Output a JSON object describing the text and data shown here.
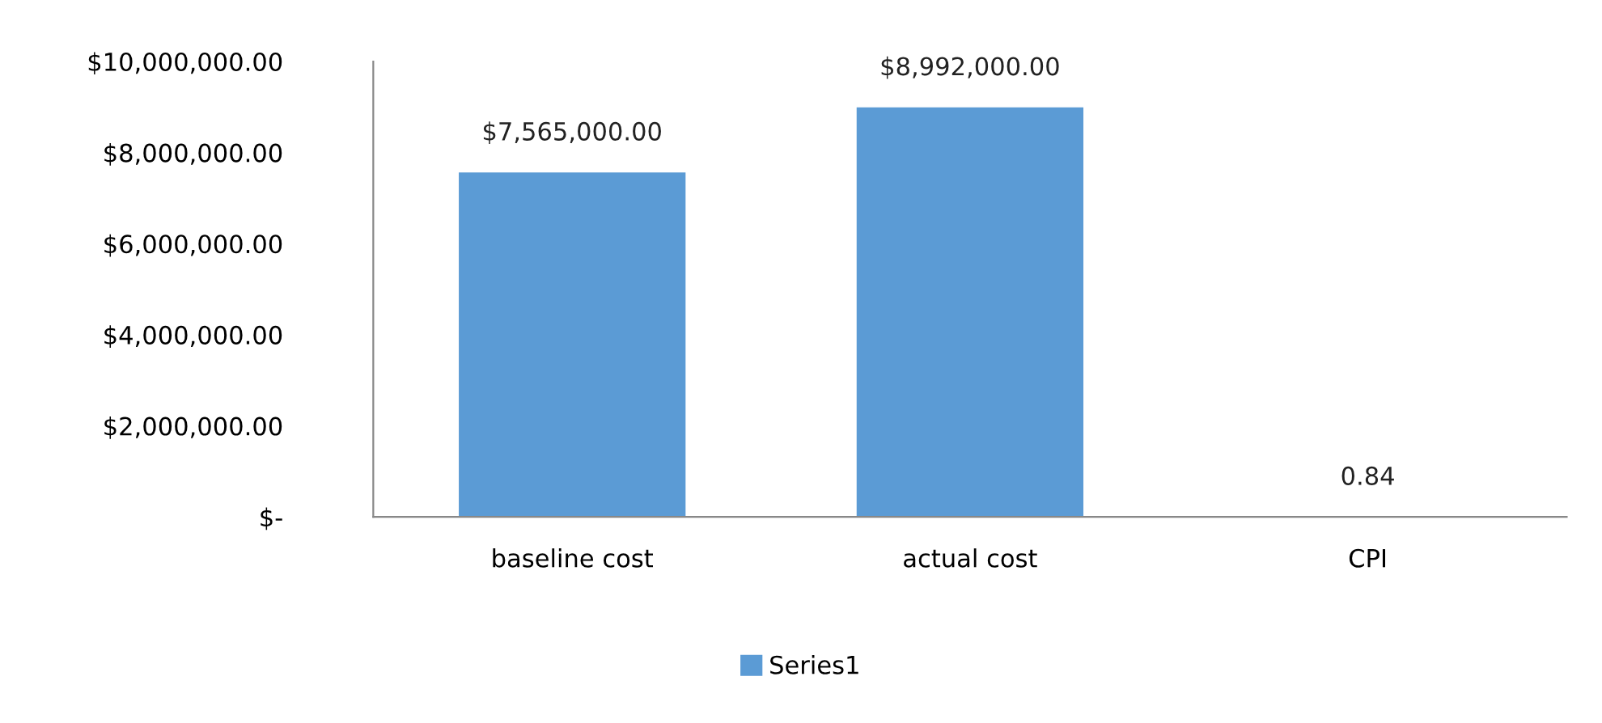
{
  "chart_data": {
    "type": "bar",
    "categories": [
      "baseline cost",
      "actual cost",
      "CPI"
    ],
    "series": [
      {
        "name": "Series1",
        "color": "#5b9bd5",
        "values": [
          7565000,
          8992000,
          0.84
        ],
        "value_labels": [
          "$7,565,000.00",
          "$8,992,000.00",
          "0.84"
        ]
      }
    ],
    "ylim": [
      0,
      10000000
    ],
    "yticks": [
      {
        "value": 0,
        "label": "$-"
      },
      {
        "value": 2000000,
        "label": "$2,000,000.00"
      },
      {
        "value": 4000000,
        "label": "$4,000,000.00"
      },
      {
        "value": 6000000,
        "label": "$6,000,000.00"
      },
      {
        "value": 8000000,
        "label": "$8,000,000.00"
      },
      {
        "value": 10000000,
        "label": "$10,000,000.00"
      }
    ],
    "grid": false,
    "legend": "bottom"
  }
}
